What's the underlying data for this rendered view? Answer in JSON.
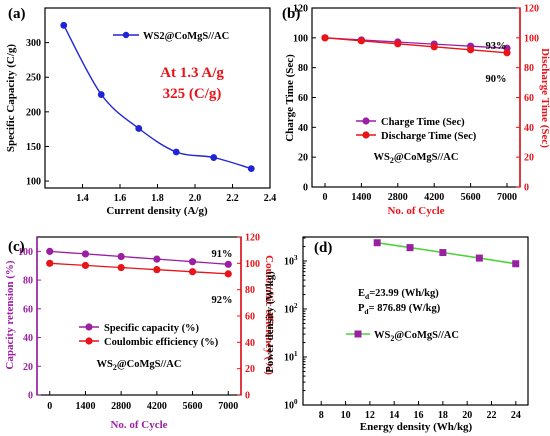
{
  "chart_data": [
    {
      "id": "a",
      "panel_label": "(a)",
      "type": "line",
      "xlabel": "Current density (A/g)",
      "ylabel": "Specific Capacity (C/g)",
      "xlim": [
        1.2,
        2.4
      ],
      "ylim": [
        90,
        350
      ],
      "xticks": [
        "1.4",
        "1.6",
        "1.8",
        "2.0",
        "2.2",
        "2.4"
      ],
      "yticks": [
        "100",
        "150",
        "200",
        "250",
        "300"
      ],
      "series": [
        {
          "name": "WS2@CoMgS//AC",
          "color": "#1f24d6",
          "x": [
            1.3,
            1.5,
            1.7,
            1.9,
            2.1,
            2.3
          ],
          "y": [
            325,
            225,
            176,
            142,
            134,
            118
          ]
        }
      ],
      "annotations": [
        "At 1.3 A/g",
        "325 (C/g)"
      ],
      "legend": "top-right"
    },
    {
      "id": "b",
      "panel_label": "(b)",
      "type": "line",
      "xlabel": "No. of Cycle",
      "ylabel": "Charge Time (Sec)",
      "ylabel_right": "Discharge Time (Sec)",
      "xlim": [
        -500,
        7500
      ],
      "ylim": [
        0,
        120
      ],
      "xticks": [
        "0",
        "1400",
        "2800",
        "4200",
        "5600",
        "7000"
      ],
      "yticks": [
        "0",
        "20",
        "40",
        "60",
        "80",
        "100",
        "120"
      ],
      "series": [
        {
          "name": "Charge Time (Sec)",
          "color": "#9b1fa3",
          "x": [
            0,
            700,
            1400,
            2100,
            2800,
            3500,
            4200,
            4900,
            5600,
            6300,
            7000
          ],
          "y": [
            100,
            99.3,
            98.6,
            97.9,
            97.2,
            96.5,
            95.8,
            95.1,
            94.4,
            93.7,
            93
          ]
        },
        {
          "name": "Discharge Time (Sec)",
          "color": "#e8141a",
          "x": [
            0,
            700,
            1400,
            2100,
            2800,
            3500,
            4200,
            4900,
            5600,
            6300,
            7000
          ],
          "y": [
            100,
            99,
            98,
            97,
            96,
            95,
            94,
            93,
            92,
            91,
            90
          ]
        }
      ],
      "annotations": [
        "93%",
        "90%",
        "WS2@CoMgS//AC"
      ],
      "legend": "center"
    },
    {
      "id": "c",
      "panel_label": "(c)",
      "type": "line",
      "xlabel": "No. of Cycle",
      "ylabel": "Capacity retension (%)",
      "ylabel_right": "Coulombic efficiency (%)",
      "xlim": [
        -500,
        7500
      ],
      "ylim_left": [
        0,
        110
      ],
      "ylim_right": [
        0,
        120
      ],
      "xticks": [
        "0",
        "1400",
        "2800",
        "4200",
        "5600",
        "7000"
      ],
      "yticks_left": [
        "0",
        "20",
        "40",
        "60",
        "80",
        "100"
      ],
      "yticks_right": [
        "0",
        "20",
        "40",
        "60",
        "80",
        "100",
        "120"
      ],
      "series": [
        {
          "name": "Specific capacity (%)",
          "color": "#9b1fa3",
          "axis": "left",
          "x": [
            0,
            700,
            1400,
            2100,
            2800,
            3500,
            4200,
            4900,
            5600,
            6300,
            7000
          ],
          "y": [
            100,
            99.1,
            98.2,
            97.3,
            96.4,
            95.5,
            94.6,
            93.7,
            92.8,
            91.9,
            91
          ]
        },
        {
          "name": "Coulombic efficiency (%)",
          "color": "#e8141a",
          "axis": "right",
          "x": [
            0,
            700,
            1400,
            2100,
            2800,
            3500,
            4200,
            4900,
            5600,
            6300,
            7000
          ],
          "y": [
            100,
            99.2,
            98.4,
            97.6,
            96.8,
            96,
            95.2,
            94.4,
            93.6,
            92.8,
            92
          ]
        }
      ],
      "annotations": [
        "91%",
        "92%",
        "WS2@CoMgS//AC"
      ],
      "legend": "lower-left"
    },
    {
      "id": "d",
      "panel_label": "(d)",
      "type": "line",
      "xlabel": "Energy density (Wh/kg)",
      "ylabel": "Power density (W/kg)",
      "xlim": [
        6.5,
        25
      ],
      "ylim_log10": [
        0,
        3.5
      ],
      "yscale": "log",
      "xticks": [
        "8",
        "10",
        "12",
        "14",
        "16",
        "18",
        "20",
        "22",
        "24"
      ],
      "yticks": [
        "10",
        "10",
        "10",
        "10"
      ],
      "ytick_exponents": [
        "0",
        "1",
        "2",
        "3"
      ],
      "series": [
        {
          "name": "WS2@CoMgS//AC",
          "color": "#4ed43a",
          "x": [
            12.6,
            15.3,
            18.0,
            21.0,
            23.99
          ],
          "y": [
            2400,
            1900,
            1500,
            1150,
            876.89
          ]
        }
      ],
      "annotations": [
        "E",
        "d",
        "=23.99 (Wh/kg)",
        "P",
        "d",
        "= 876.89 (W/kg)"
      ],
      "legend": "center"
    }
  ]
}
